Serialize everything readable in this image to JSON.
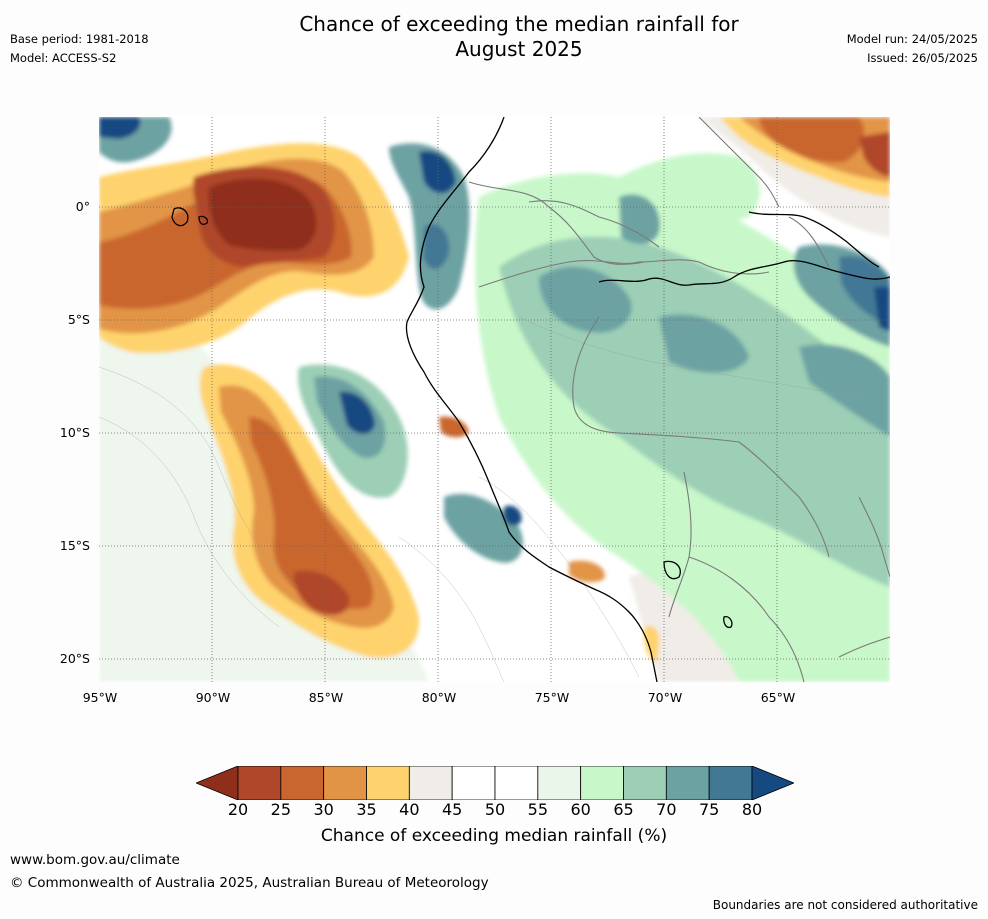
{
  "header": {
    "title_line1": "Chance of exceeding the median rainfall for",
    "title_line2": "August 2025",
    "base_period": "Base period: 1981-2018",
    "model": "Model: ACCESS-S2",
    "model_run": "Model run: 24/05/2025",
    "issued": "Issued: 26/05/2025"
  },
  "map": {
    "lat_labels": [
      "0°",
      "5°S",
      "10°S",
      "15°S",
      "20°S"
    ],
    "lon_labels": [
      "95°W",
      "90°W",
      "85°W",
      "80°W",
      "75°W",
      "70°W",
      "65°W"
    ]
  },
  "colorbar": {
    "ticks": [
      "20",
      "25",
      "30",
      "35",
      "40",
      "45",
      "50",
      "55",
      "60",
      "65",
      "70",
      "75",
      "80"
    ],
    "colors": [
      "#8f2e1a",
      "#b0472a",
      "#c9662f",
      "#e29446",
      "#fed36d",
      "#f0ece7",
      "#ffffff",
      "#ffffff",
      "#eaf6ea",
      "#c8f8c9",
      "#9ccfb6",
      "#6da2a3",
      "#437895",
      "#154a81"
    ],
    "title": "Chance of exceeding median rainfall (%)"
  },
  "footer": {
    "website": "www.bom.gov.au/climate",
    "copyright": "© Commonwealth of Australia 2025, Australian Bureau of Meteorology",
    "disclaimer": "Boundaries are not considered authoritative"
  }
}
